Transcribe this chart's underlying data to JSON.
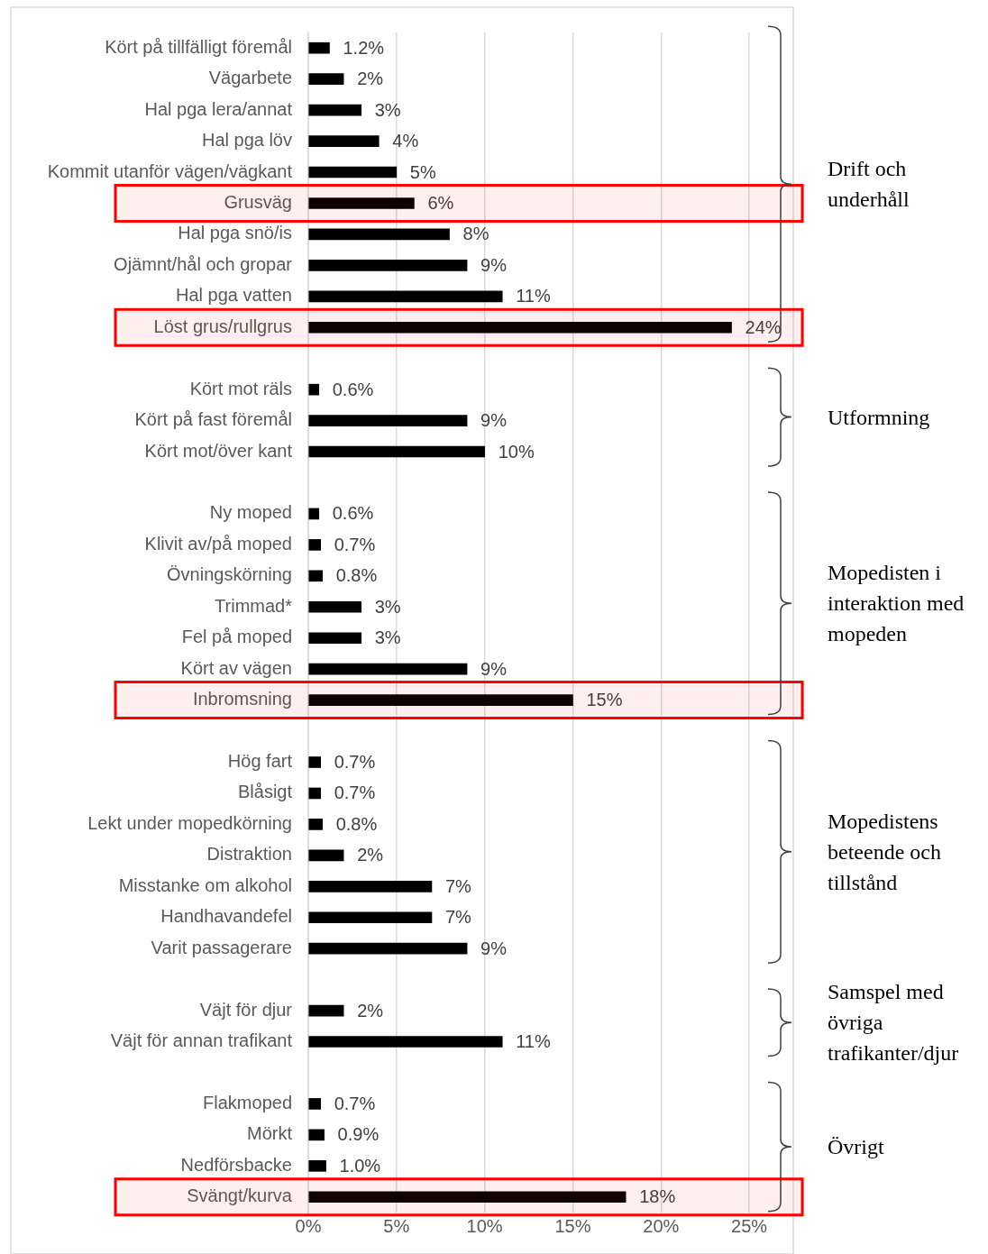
{
  "chart_data": {
    "type": "bar",
    "orientation": "horizontal",
    "categories": [
      "Kört på tillfälligt föremål",
      "Vägarbete",
      "Hal pga lera/annat",
      "Hal pga löv",
      "Kommit utanför vägen/vägkant",
      "Grusväg",
      "Hal pga snö/is",
      "Ojämnt/hål och gropar",
      "Hal pga vatten",
      "Löst grus/rullgrus",
      null,
      "Kört mot räls",
      "Kört på fast föremål",
      "Kört mot/över kant",
      null,
      "Ny moped",
      "Klivit av/på moped",
      "Övningskörning",
      "Trimmad*",
      "Fel på moped",
      "Kört av vägen",
      "Inbromsning",
      null,
      "Hög fart",
      "Blåsigt",
      "Lekt under mopedkörning",
      "Distraktion",
      "Misstanke om alkohol",
      "Handhavandefel",
      "Varit passagerare",
      null,
      "Väjt för djur",
      "Väjt för annan trafikant",
      null,
      "Flakmoped",
      "Mörkt",
      "Nedförsbacke",
      "Svängt/kurva"
    ],
    "values": [
      1.2,
      2,
      3,
      4,
      5,
      6,
      8,
      9,
      11,
      24,
      null,
      0.6,
      9,
      10,
      null,
      0.6,
      0.7,
      0.8,
      3,
      3,
      9,
      15,
      null,
      0.7,
      0.7,
      0.8,
      2,
      7,
      7,
      9,
      null,
      2,
      11,
      null,
      0.7,
      0.9,
      1.0,
      18
    ],
    "value_labels": [
      "1.2%",
      "2%",
      "3%",
      "4%",
      "5%",
      "6%",
      "8%",
      "9%",
      "11%",
      "24%",
      null,
      "0.6%",
      "9%",
      "10%",
      null,
      "0.6%",
      "0.7%",
      "0.8%",
      "3%",
      "3%",
      "9%",
      "15%",
      null,
      "0.7%",
      "0.7%",
      "0.8%",
      "2%",
      "7%",
      "7%",
      "9%",
      null,
      "2%",
      "11%",
      null,
      "0.7%",
      "0.9%",
      "1.0%",
      "18%"
    ],
    "color": "#000000",
    "xlim": [
      0,
      27.5
    ],
    "xticks": [
      {
        "value": 0,
        "label": "0%"
      },
      {
        "value": 5,
        "label": "5%"
      },
      {
        "value": 10,
        "label": "10%"
      },
      {
        "value": 15,
        "label": "15%"
      },
      {
        "value": 20,
        "label": "20%"
      },
      {
        "value": 25,
        "label": "25%"
      }
    ],
    "grid": "x",
    "bands": [
      {
        "axis": "y",
        "from": "Grusväg",
        "to": "Grusväg",
        "color": "#ff0000"
      },
      {
        "axis": "y",
        "from": "Löst grus/rullgrus",
        "to": "Löst grus/rullgrus",
        "color": "#ff0000"
      },
      {
        "axis": "y",
        "from": "Inbromsning",
        "to": "Inbromsning",
        "color": "#ff0000"
      },
      {
        "axis": "y",
        "from": "Svängt/kurva",
        "to": "Svängt/kurva",
        "color": "#ff0000"
      }
    ],
    "annotations": [
      "Drift och underhåll",
      "Utformning",
      "Mopedisten i interaktion med mopeden",
      "Mopedistens beteende och tillstånd",
      "Samspel med övriga trafikanter/djur",
      "Övrigt"
    ]
  }
}
